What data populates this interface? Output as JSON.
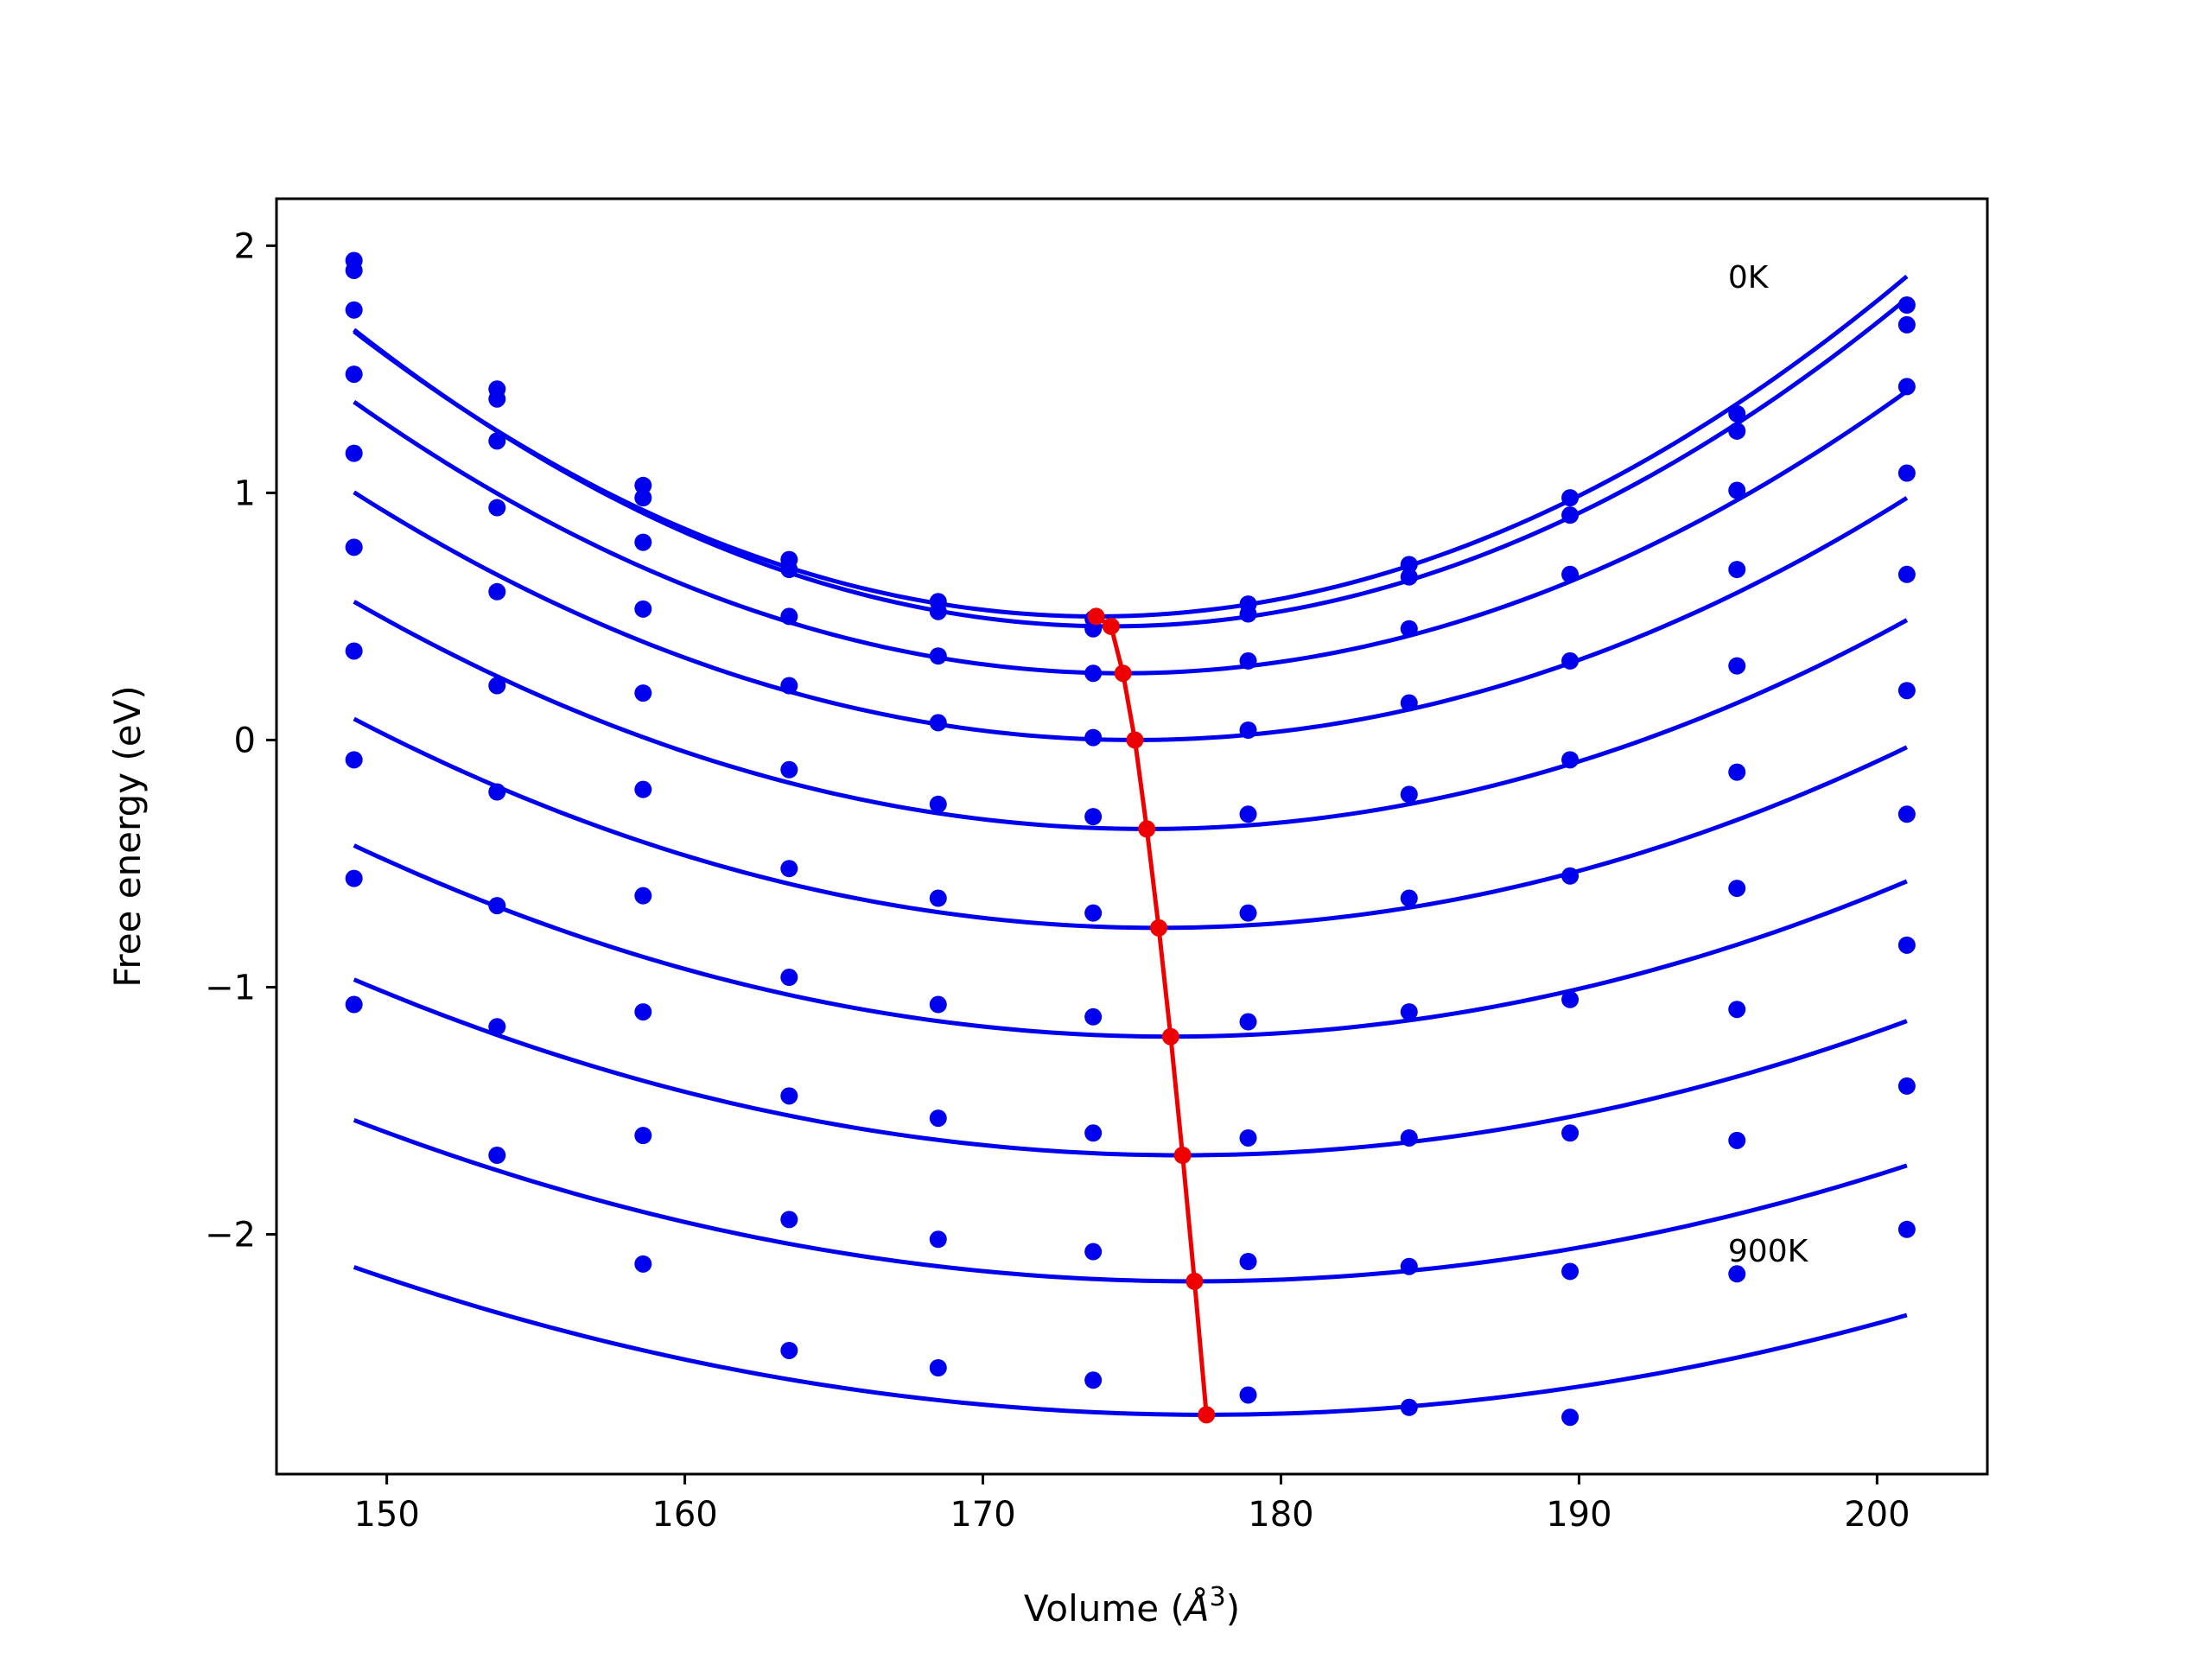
{
  "chart_data": {
    "type": "line",
    "title": "",
    "xlabel": "Volume (",
    "xlabel_symbol": "Å",
    "xlabel_exp": "3",
    "xlabel_close": ")",
    "ylabel": "Free energy (eV)",
    "xlim": [
      146.3,
      203.7
    ],
    "ylim": [
      -2.97,
      2.19
    ],
    "xticks": [
      150,
      160,
      170,
      180,
      190,
      200
    ],
    "yticks": [
      2,
      1,
      0,
      -1,
      -2
    ],
    "ytick_labels": [
      "2",
      "1",
      "0",
      "−1",
      "−2"
    ],
    "grid": false,
    "annotations": [
      {
        "text": "0K",
        "x": 195.0,
        "y": 1.83
      },
      {
        "text": "900K",
        "x": 195.0,
        "y": -2.11
      }
    ],
    "volumes": [
      148.9,
      153.7,
      158.6,
      163.5,
      168.5,
      173.7,
      178.9,
      184.3,
      189.7,
      195.3,
      201.0
    ],
    "fit_color": "#0000ee",
    "min_color": "#ee0000",
    "curves": [
      {
        "a": 0.00186,
        "vmin": 173.8,
        "fmin": 0.5,
        "points": [
          1.94,
          1.42,
          1.03,
          0.73,
          0.56,
          0.49,
          0.55,
          0.71,
          0.98,
          1.32,
          1.76
        ]
      },
      {
        "a": 0.00186,
        "vmin": 174.3,
        "fmin": 0.46,
        "points": [
          1.9,
          1.38,
          0.98,
          0.69,
          0.52,
          0.45,
          0.51,
          0.66,
          0.91,
          1.25,
          1.68
        ]
      },
      {
        "a": 0.00165,
        "vmin": 174.7,
        "fmin": 0.27,
        "points": [
          1.74,
          1.21,
          0.8,
          0.5,
          0.34,
          0.27,
          0.32,
          0.45,
          0.67,
          1.01,
          1.43
        ]
      },
      {
        "a": 0.00146,
        "vmin": 175.1,
        "fmin": 0.0,
        "points": [
          1.48,
          0.94,
          0.53,
          0.22,
          0.07,
          0.01,
          0.04,
          0.15,
          0.32,
          0.69,
          1.08
        ]
      },
      {
        "a": 0.0013,
        "vmin": 175.5,
        "fmin": -0.36,
        "points": [
          1.16,
          0.6,
          0.19,
          -0.12,
          -0.26,
          -0.31,
          -0.3,
          -0.22,
          -0.08,
          0.3,
          0.67
        ]
      },
      {
        "a": 0.00116,
        "vmin": 175.9,
        "fmin": -0.76,
        "points": [
          0.78,
          0.22,
          -0.2,
          -0.52,
          -0.64,
          -0.7,
          -0.7,
          -0.64,
          -0.55,
          -0.13,
          0.2
        ]
      },
      {
        "a": 0.00103,
        "vmin": 176.3,
        "fmin": -1.2,
        "points": [
          0.36,
          -0.21,
          -0.63,
          -0.96,
          -1.07,
          -1.12,
          -1.14,
          -1.1,
          -1.05,
          -0.6,
          -0.3
        ]
      },
      {
        "a": 0.00092,
        "vmin": 176.7,
        "fmin": -1.68,
        "points": [
          -0.08,
          -0.67,
          -1.1,
          -1.44,
          -1.53,
          -1.59,
          -1.61,
          -1.61,
          -1.59,
          -1.09,
          -0.83
        ]
      },
      {
        "a": 0.00082,
        "vmin": 177.1,
        "fmin": -2.19,
        "points": [
          -0.56,
          -1.16,
          -1.6,
          -1.94,
          -2.02,
          -2.07,
          -2.11,
          -2.13,
          -2.15,
          -1.62,
          -1.4
        ]
      },
      {
        "a": 0.00073,
        "vmin": 177.5,
        "fmin": -2.73,
        "points": [
          -1.07,
          -1.68,
          -2.12,
          -2.47,
          -2.54,
          -2.59,
          -2.65,
          -2.7,
          -2.74,
          -2.16,
          -1.98
        ]
      }
    ],
    "min_line": {
      "x": [
        173.8,
        174.3,
        174.7,
        175.1,
        175.5,
        175.9,
        176.3,
        176.7,
        177.1,
        177.5
      ],
      "y": [
        0.5,
        0.46,
        0.27,
        0.0,
        -0.36,
        -0.76,
        -1.2,
        -1.68,
        -2.19,
        -2.73
      ]
    }
  }
}
